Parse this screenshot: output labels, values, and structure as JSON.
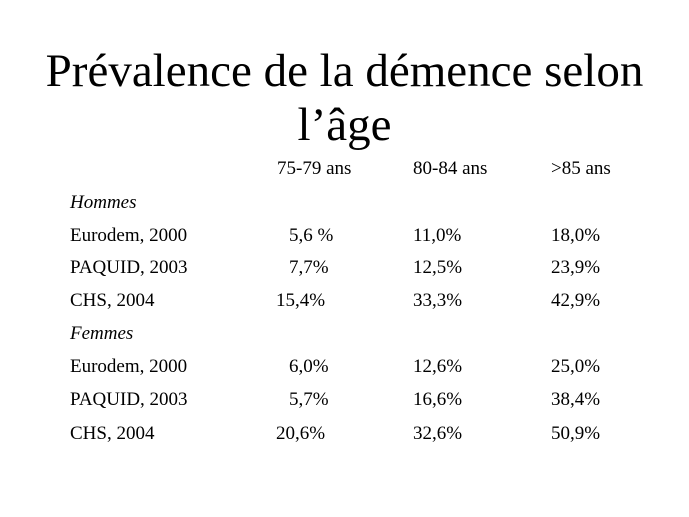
{
  "title_line1": "Prévalence de la démence selon",
  "title_line2": "l’âge",
  "columns": [
    "75-79 ans",
    "80-84 ans",
    ">85 ans"
  ],
  "groups": [
    {
      "label": "Hommes",
      "rows": [
        {
          "study": "Eurodem, 2000",
          "values": [
            "5,6 %",
            "11,0%",
            "18,0%"
          ]
        },
        {
          "study": "PAQUID, 2003",
          "values": [
            "7,7%",
            "12,5%",
            "23,9%"
          ]
        },
        {
          "study": "CHS, 2004",
          "values": [
            "15,4%",
            "33,3%",
            "42,9%"
          ]
        }
      ]
    },
    {
      "label": "Femmes",
      "rows": [
        {
          "study": "Eurodem, 2000",
          "values": [
            "6,0%",
            "12,6%",
            "25,0%"
          ]
        },
        {
          "study": "PAQUID, 2003",
          "values": [
            "5,7%",
            "16,6%",
            "38,4%"
          ]
        },
        {
          "study": "CHS, 2004",
          "values": [
            "20,6%",
            "32,6%",
            "50,9%"
          ]
        }
      ]
    }
  ]
}
